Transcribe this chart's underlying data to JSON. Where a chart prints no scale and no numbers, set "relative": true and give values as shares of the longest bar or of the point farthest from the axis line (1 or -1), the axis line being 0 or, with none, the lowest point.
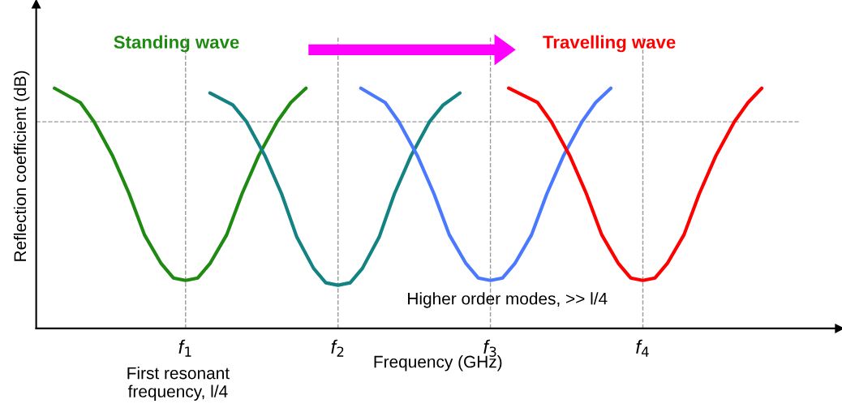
{
  "chart_data": {
    "type": "line",
    "relative": true,
    "xlabel": "Frequency (GHz)",
    "ylabel": "Reflection coefficient (dB)",
    "xlim": [
      0.02,
      5.29
    ],
    "xticks": [
      {
        "value": 1,
        "label": "f$_{1}$"
      },
      {
        "value": 2,
        "label": "f$_{2}$"
      },
      {
        "value": 3,
        "label": "f$_{3}$"
      },
      {
        "value": 4,
        "label": "f$_{4}$"
      }
    ],
    "tick_labels": "x",
    "grid": false,
    "line_style": "solid",
    "marker": "none",
    "series": [
      {
        "color": "#1f8a12",
        "x": [
          0.14,
          0.31,
          0.4,
          0.52,
          0.63,
          0.73,
          0.84,
          0.92,
          1.0,
          1.08,
          1.16,
          1.27,
          1.37,
          1.48,
          1.6,
          1.69,
          1.79
        ],
        "values": [
          1.0,
          0.94,
          0.86,
          0.72,
          0.56,
          0.39,
          0.27,
          0.21,
          0.2,
          0.21,
          0.27,
          0.39,
          0.56,
          0.72,
          0.86,
          0.94,
          1.0
        ]
      },
      {
        "color": "#128282",
        "x": [
          1.16,
          1.31,
          1.4,
          1.52,
          1.63,
          1.73,
          1.84,
          1.92,
          2.0,
          2.08,
          2.16,
          2.27,
          2.37,
          2.48,
          2.6,
          2.69,
          2.8
        ],
        "values": [
          0.98,
          0.93,
          0.86,
          0.72,
          0.56,
          0.38,
          0.25,
          0.19,
          0.18,
          0.19,
          0.25,
          0.38,
          0.56,
          0.72,
          0.86,
          0.93,
          0.98
        ]
      },
      {
        "color": "#4a78ff",
        "x": [
          2.15,
          2.31,
          2.4,
          2.52,
          2.63,
          2.73,
          2.84,
          2.92,
          3.0,
          3.08,
          3.16,
          3.27,
          3.37,
          3.48,
          3.6,
          3.69,
          3.79
        ],
        "values": [
          1.0,
          0.94,
          0.86,
          0.72,
          0.56,
          0.39,
          0.27,
          0.21,
          0.2,
          0.21,
          0.27,
          0.39,
          0.56,
          0.72,
          0.86,
          0.94,
          1.0
        ]
      },
      {
        "color": "#ff0000",
        "x": [
          3.12,
          3.31,
          3.4,
          3.52,
          3.63,
          3.73,
          3.84,
          3.92,
          4.0,
          4.08,
          4.16,
          4.27,
          4.37,
          4.48,
          4.6,
          4.69,
          4.78
        ],
        "values": [
          1.0,
          0.94,
          0.86,
          0.72,
          0.56,
          0.39,
          0.27,
          0.21,
          0.2,
          0.21,
          0.27,
          0.39,
          0.56,
          0.72,
          0.86,
          0.94,
          1.0
        ]
      }
    ],
    "ref_lines": [
      {
        "axis": "y",
        "value": 0.86,
        "color": "#999999",
        "line_style": "dashed"
      },
      {
        "axis": "x",
        "value": 1,
        "color": "#999999",
        "line_style": "dashed"
      },
      {
        "axis": "x",
        "value": 2,
        "color": "#999999",
        "line_style": "dashed"
      },
      {
        "axis": "x",
        "value": 3,
        "color": "#999999",
        "line_style": "dashed"
      },
      {
        "axis": "x",
        "value": 4,
        "color": "#999999",
        "line_style": "dashed"
      }
    ],
    "annotations": [
      "Standing wave",
      "Travelling wave",
      "Higher order modes, >> l/4",
      "First resonant\nfrequency, l/4"
    ]
  }
}
